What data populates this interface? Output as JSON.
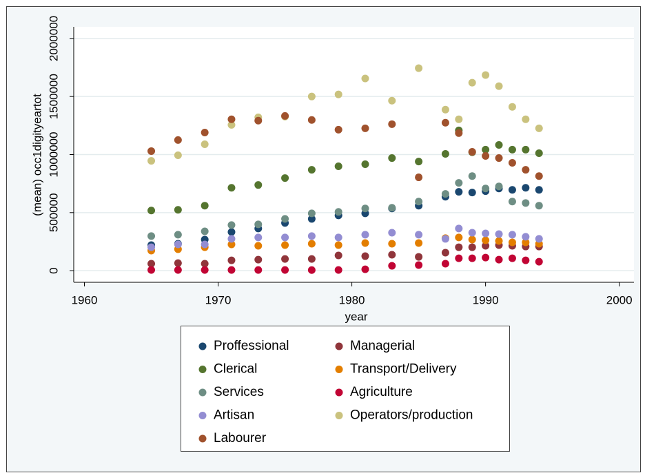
{
  "chart_data": {
    "type": "scatter",
    "x_label": "year",
    "y_label": "(mean) occ1digityeartot",
    "x": [
      1965,
      1967,
      1969,
      1971,
      1973,
      1975,
      1977,
      1979,
      1981,
      1983,
      1985,
      1987,
      1988,
      1989,
      1990,
      1991,
      1992,
      1993,
      1994
    ],
    "xlim": [
      1959.2,
      2001.1
    ],
    "xticks": [
      1960,
      1970,
      1980,
      1990,
      2000
    ],
    "ylim": [
      -100000,
      2100000
    ],
    "yticks": [
      0,
      500000,
      1000000,
      1500000,
      2000000
    ],
    "grid": true,
    "legend": "bottom",
    "series": [
      {
        "name": "Proffessional",
        "color": "#1a476f",
        "values": [
          220000,
          232000,
          268000,
          333000,
          363000,
          411000,
          446000,
          476000,
          494000,
          536000,
          560000,
          637000,
          679000,
          673000,
          685000,
          708000,
          696000,
          714000,
          696000
        ]
      },
      {
        "name": "Managerial",
        "color": "#90353b",
        "values": [
          60000,
          65000,
          60000,
          89000,
          95000,
          101000,
          101000,
          131000,
          125000,
          137000,
          119000,
          155000,
          202000,
          202000,
          214000,
          220000,
          214000,
          208000,
          208000
        ]
      },
      {
        "name": "Clerical",
        "color": "#55752f",
        "values": [
          518000,
          524000,
          560000,
          714000,
          738000,
          798000,
          869000,
          899000,
          917000,
          970000,
          940000,
          1006000,
          1208000,
          1020000,
          1042000,
          1083000,
          1042000,
          1042000,
          1012000
        ]
      },
      {
        "name": "Transport/Delivery",
        "color": "#e37e00",
        "values": [
          173000,
          185000,
          202000,
          226000,
          214000,
          220000,
          232000,
          220000,
          238000,
          232000,
          238000,
          280000,
          286000,
          268000,
          262000,
          256000,
          244000,
          244000,
          232000
        ]
      },
      {
        "name": "Services",
        "color": "#6e8e84",
        "values": [
          298000,
          310000,
          339000,
          393000,
          399000,
          446000,
          494000,
          506000,
          536000,
          542000,
          595000,
          661000,
          756000,
          815000,
          708000,
          726000,
          595000,
          583000,
          560000
        ]
      },
      {
        "name": "Agriculture",
        "color": "#c10534",
        "values": [
          6000,
          6000,
          6000,
          6000,
          6000,
          6000,
          5000,
          6000,
          12000,
          42000,
          48000,
          60000,
          107000,
          107000,
          113000,
          95000,
          107000,
          89000,
          77000
        ]
      },
      {
        "name": "Artisan",
        "color": "#938dd2",
        "values": [
          202000,
          226000,
          226000,
          274000,
          286000,
          286000,
          298000,
          286000,
          310000,
          327000,
          310000,
          274000,
          363000,
          327000,
          321000,
          315000,
          310000,
          292000,
          274000
        ]
      },
      {
        "name": "Operators/production",
        "color": "#cac27e",
        "values": [
          946000,
          994000,
          1089000,
          1256000,
          1321000,
          1327000,
          1500000,
          1518000,
          1655000,
          1464000,
          1744000,
          1387000,
          1304000,
          1619000,
          1685000,
          1589000,
          1411000,
          1304000,
          1226000
        ]
      },
      {
        "name": "Labourer",
        "color": "#a0522d",
        "values": [
          1030000,
          1125000,
          1190000,
          1304000,
          1292000,
          1333000,
          1298000,
          1214000,
          1226000,
          1262000,
          804000,
          1274000,
          1185000,
          1024000,
          988000,
          970000,
          929000,
          869000,
          815000
        ]
      }
    ]
  }
}
